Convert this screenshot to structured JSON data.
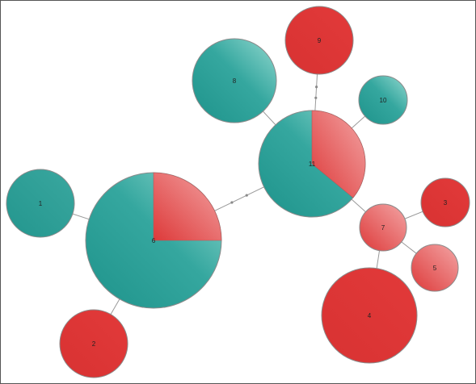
{
  "diagram": {
    "type": "bubble-network",
    "colors": {
      "teal_light": "#7fd0c6",
      "teal_dark": "#2a9d95",
      "red_light": "#f0a0a0",
      "red_dark": "#dc3232",
      "edge": "#9a9a9a",
      "border": "#555555"
    },
    "nodes": [
      {
        "id": "1",
        "label": "1",
        "composition": "teal"
      },
      {
        "id": "2",
        "label": "2",
        "composition": "red"
      },
      {
        "id": "3",
        "label": "3",
        "composition": "red"
      },
      {
        "id": "4",
        "label": "4",
        "composition": "red"
      },
      {
        "id": "5",
        "label": "5",
        "composition": "red_light"
      },
      {
        "id": "6",
        "label": "6",
        "composition": "pie",
        "red_fraction": 0.25
      },
      {
        "id": "7",
        "label": "7",
        "composition": "red_light"
      },
      {
        "id": "8",
        "label": "8",
        "composition": "teal_light"
      },
      {
        "id": "9",
        "label": "9",
        "composition": "red"
      },
      {
        "id": "10",
        "label": "10",
        "composition": "teal_light"
      },
      {
        "id": "11",
        "label": "11",
        "composition": "pie",
        "red_fraction": 0.36
      }
    ],
    "edges": [
      {
        "from": "1",
        "to": "6"
      },
      {
        "from": "2",
        "to": "6"
      },
      {
        "from": "6",
        "to": "11",
        "marked": true
      },
      {
        "from": "8",
        "to": "11"
      },
      {
        "from": "9",
        "to": "11",
        "marked": true
      },
      {
        "from": "10",
        "to": "11"
      },
      {
        "from": "11",
        "to": "7"
      },
      {
        "from": "7",
        "to": "3"
      },
      {
        "from": "7",
        "to": "5"
      },
      {
        "from": "7",
        "to": "4"
      }
    ]
  }
}
